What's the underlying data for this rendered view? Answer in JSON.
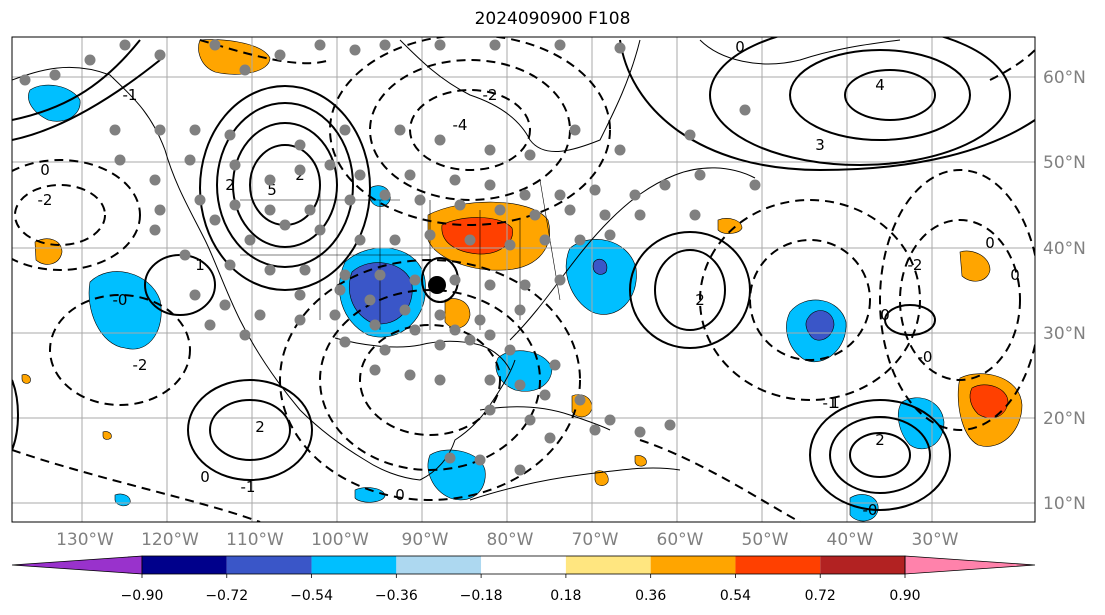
{
  "title": "2024090900 F108",
  "longitude_labels": [
    "130°W",
    "120°W",
    "110°W",
    "100°W",
    "90°W",
    "80°W",
    "70°W",
    "60°W",
    "50°W",
    "40°W",
    "30°W"
  ],
  "latitude_labels": [
    "60°N",
    "50°N",
    "40°N",
    "30°N",
    "20°N",
    "10°N"
  ],
  "colorbar": {
    "ticks": [
      "−0.90",
      "−0.72",
      "−0.54",
      "−0.36",
      "−0.18",
      "0.18",
      "0.36",
      "0.54",
      "0.72",
      "0.90"
    ],
    "colors": [
      "#9932cc",
      "#00008b",
      "#3a56c8",
      "#00bfff",
      "#add8f0",
      "#ffffff",
      "#ffe680",
      "#ffa500",
      "#ff4000",
      "#b22222",
      "#ff82ab"
    ]
  },
  "contour_labels": {
    "positive": [
      "2",
      "5",
      "1",
      "3",
      "4",
      "2",
      "2",
      "1",
      "2",
      "2"
    ],
    "negative": [
      "-2",
      "-4",
      "-2",
      "0",
      "-1",
      "-1",
      "-2",
      "-0",
      "0",
      "0",
      "-2",
      "-1",
      "0",
      "0",
      "-0",
      "0",
      "-0",
      "0"
    ]
  },
  "colors": {
    "grid": "#a9a9a9",
    "station": "#808080",
    "point": "#000000"
  }
}
